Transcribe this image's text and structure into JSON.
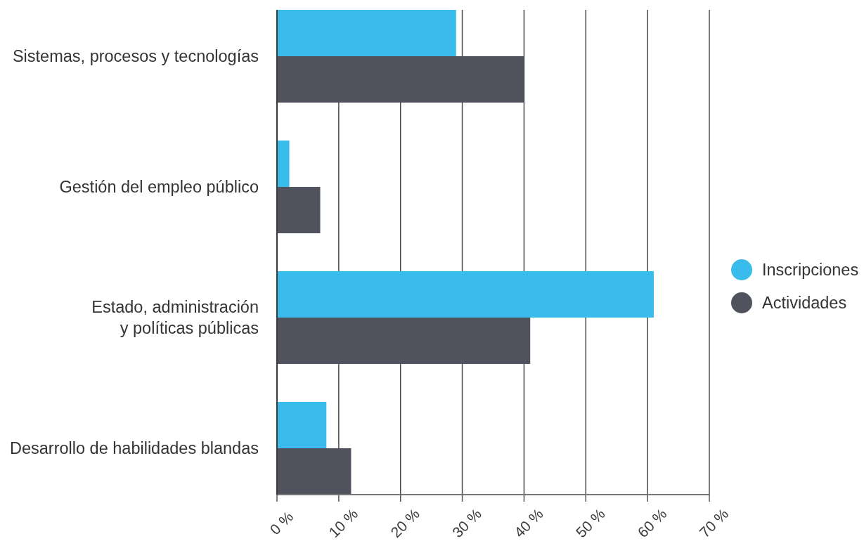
{
  "chart_data": {
    "type": "bar",
    "orientation": "horizontal",
    "categories": [
      "Sistemas, procesos y tecnologías",
      "Gestión del empleo público",
      "Estado, administración\ny políticas públicas",
      "Desarrollo de habilidades blandas"
    ],
    "series": [
      {
        "name": "Inscripciones",
        "color": "#39bbec",
        "values": [
          29,
          2,
          61,
          8
        ]
      },
      {
        "name": "Actividades",
        "color": "#50535d",
        "values": [
          40,
          7,
          41,
          12
        ]
      }
    ],
    "xlim": [
      0,
      70
    ],
    "xticks": [
      {
        "value": 0,
        "label": "0 %"
      },
      {
        "value": 10,
        "label": "10 %"
      },
      {
        "value": 20,
        "label": "20 %"
      },
      {
        "value": 30,
        "label": "30 %"
      },
      {
        "value": 40,
        "label": "40 %"
      },
      {
        "value": 50,
        "label": "50 %"
      },
      {
        "value": 60,
        "label": "60 %"
      },
      {
        "value": 70,
        "label": "70 %"
      }
    ],
    "grid": "x",
    "legend": "right"
  }
}
